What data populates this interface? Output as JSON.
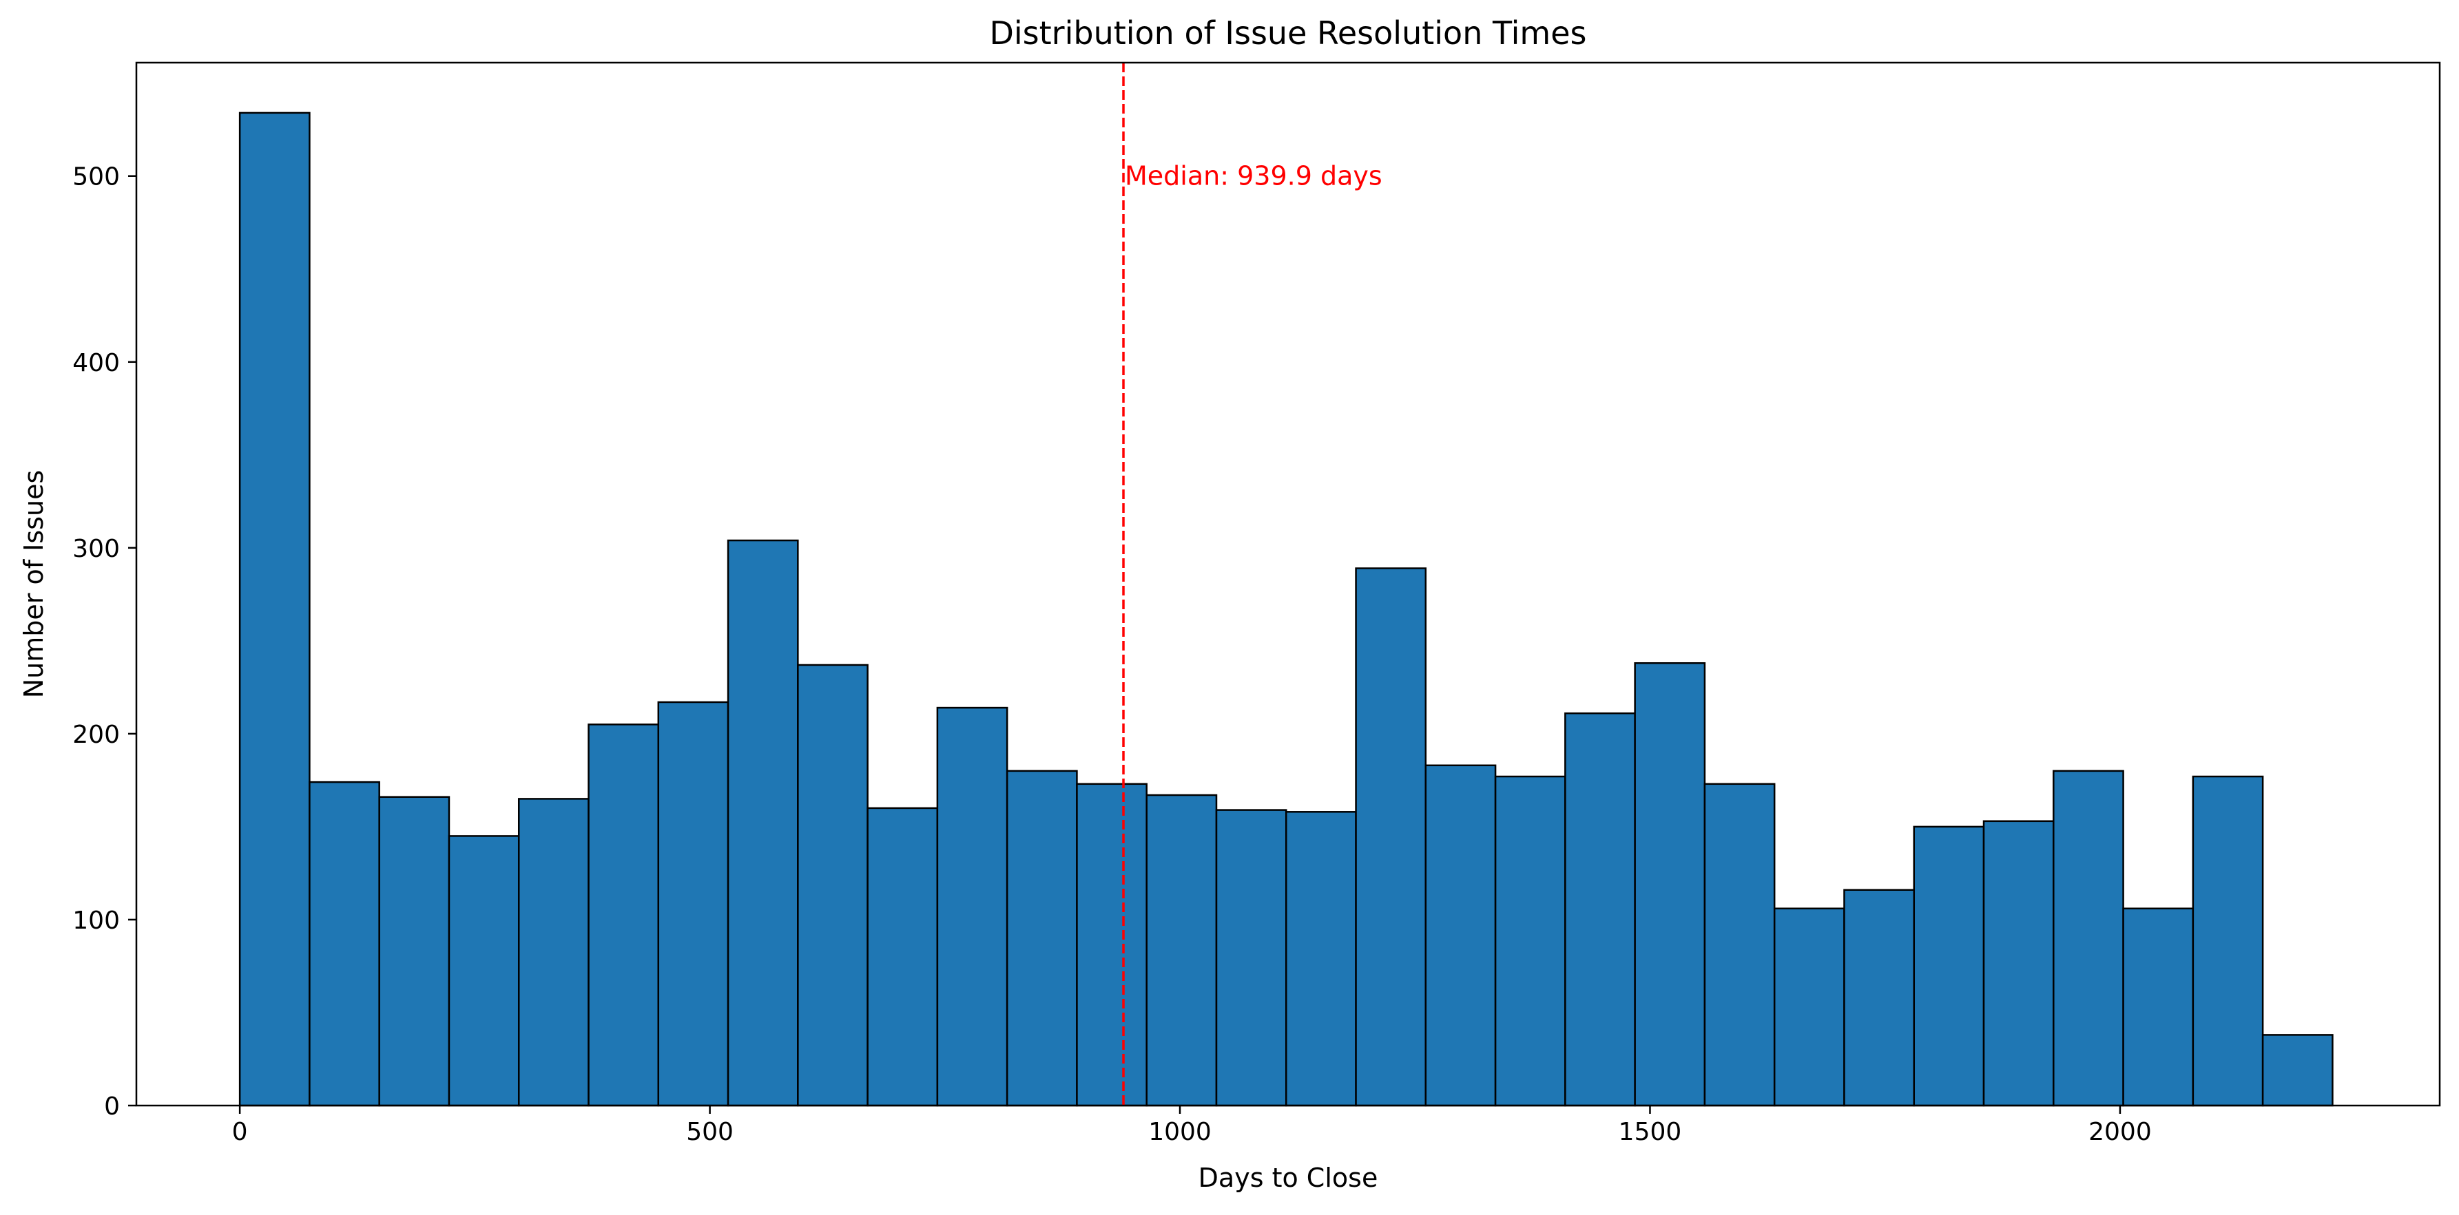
{
  "chart_data": {
    "type": "bar",
    "title": "Distribution of Issue Resolution Times",
    "xlabel": "Days to Close",
    "ylabel": "Number of Issues",
    "xlim": [
      -110,
      2340
    ],
    "ylim": [
      0,
      561
    ],
    "x_ticks": [
      0,
      500,
      1000,
      1500,
      2000
    ],
    "y_ticks": [
      0,
      100,
      200,
      300,
      400,
      500
    ],
    "grid": false,
    "bins": {
      "start": 0,
      "width": 74.2,
      "counts": [
        534,
        174,
        166,
        145,
        165,
        205,
        217,
        304,
        237,
        160,
        214,
        180,
        173,
        167,
        159,
        158,
        289,
        183,
        177,
        211,
        238,
        173,
        106,
        116,
        150,
        153,
        180,
        106,
        177,
        38
      ]
    },
    "bar_color": "#1f77b4",
    "bar_edge_color": "#000000",
    "median": {
      "value": 939.9,
      "label": "Median: 939.9 days",
      "color": "#ff0000",
      "linestyle": "dashed"
    }
  }
}
